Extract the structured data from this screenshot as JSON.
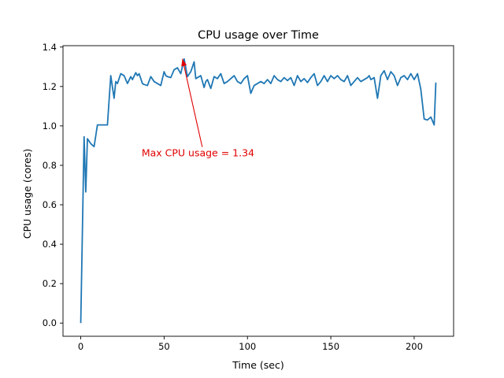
{
  "chart_data": {
    "type": "line",
    "title": "CPU usage over Time",
    "xlabel": "Time (sec)",
    "ylabel": "CPU usage (cores)",
    "xlim": [
      -10.65,
      223.65
    ],
    "ylim": [
      -0.067,
      1.407
    ],
    "xticks": [
      0,
      50,
      100,
      150,
      200
    ],
    "yticks": [
      0.0,
      0.2,
      0.4,
      0.6,
      0.8,
      1.0,
      1.2,
      1.4
    ],
    "ytick_labels": [
      "0.0",
      "0.2",
      "0.4",
      "0.6",
      "0.8",
      "1.0",
      "1.2",
      "1.4"
    ],
    "grid": false,
    "series": [
      {
        "color": "#1f77b4",
        "x": [
          0,
          2,
          3,
          4,
          6,
          8,
          10,
          13,
          16,
          18,
          20,
          21,
          22,
          24,
          26,
          28,
          30,
          31,
          33,
          34,
          35,
          37,
          38,
          40,
          42,
          44,
          46,
          48,
          50,
          51,
          52,
          54,
          56,
          58,
          60,
          62,
          64,
          66,
          68,
          69,
          70,
          72,
          74,
          75,
          76,
          78,
          80,
          82,
          84,
          86,
          88,
          90,
          92,
          94,
          96,
          98,
          100,
          102,
          104,
          106,
          108,
          110,
          112,
          114,
          116,
          118,
          120,
          122,
          124,
          126,
          128,
          130,
          132,
          134,
          136,
          138,
          140,
          142,
          144,
          146,
          148,
          150,
          152,
          154,
          156,
          158,
          160,
          162,
          164,
          166,
          168,
          170,
          172,
          173,
          174,
          176,
          178,
          180,
          182,
          184,
          186,
          188,
          190,
          192,
          194,
          196,
          198,
          200,
          202,
          204,
          206,
          208,
          210,
          212,
          213
        ],
        "y": [
          0.0,
          0.945,
          0.665,
          0.935,
          0.91,
          0.895,
          1.005,
          1.005,
          1.005,
          1.255,
          1.14,
          1.225,
          1.215,
          1.265,
          1.255,
          1.215,
          1.25,
          1.235,
          1.27,
          1.255,
          1.265,
          1.215,
          1.21,
          1.205,
          1.25,
          1.225,
          1.215,
          1.205,
          1.275,
          1.255,
          1.25,
          1.245,
          1.285,
          1.295,
          1.265,
          1.34,
          1.25,
          1.275,
          1.325,
          1.24,
          1.245,
          1.255,
          1.195,
          1.225,
          1.235,
          1.19,
          1.25,
          1.24,
          1.265,
          1.215,
          1.225,
          1.24,
          1.255,
          1.225,
          1.215,
          1.24,
          1.255,
          1.165,
          1.205,
          1.215,
          1.225,
          1.215,
          1.235,
          1.215,
          1.255,
          1.235,
          1.225,
          1.245,
          1.23,
          1.245,
          1.205,
          1.255,
          1.225,
          1.24,
          1.22,
          1.245,
          1.265,
          1.205,
          1.225,
          1.255,
          1.225,
          1.255,
          1.24,
          1.255,
          1.235,
          1.225,
          1.255,
          1.205,
          1.225,
          1.245,
          1.225,
          1.235,
          1.245,
          1.255,
          1.235,
          1.245,
          1.14,
          1.255,
          1.28,
          1.235,
          1.275,
          1.255,
          1.205,
          1.245,
          1.255,
          1.235,
          1.265,
          1.235,
          1.265,
          1.185,
          1.035,
          1.03,
          1.045,
          1.005,
          1.22
        ]
      }
    ],
    "annotation": {
      "text": "Max CPU usage = 1.34",
      "color": "#e00000",
      "point": {
        "x": 61,
        "y": 1.34
      },
      "text_at": {
        "x": 36.5,
        "y": 0.845
      }
    }
  }
}
